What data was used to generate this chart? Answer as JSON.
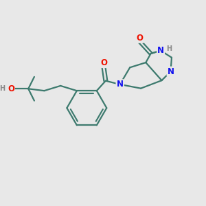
{
  "bg_color": "#e8e8e8",
  "bond_color": "#3d7a6e",
  "bond_width": 1.6,
  "atom_colors": {
    "O": "#ee1100",
    "N": "#1111ee",
    "H": "#888888"
  },
  "font_size_atom": 8.5,
  "font_size_h": 7.0,
  "figsize": [
    3.0,
    3.0
  ],
  "dpi": 100,
  "xlim": [
    0,
    10
  ],
  "ylim": [
    0,
    10
  ]
}
